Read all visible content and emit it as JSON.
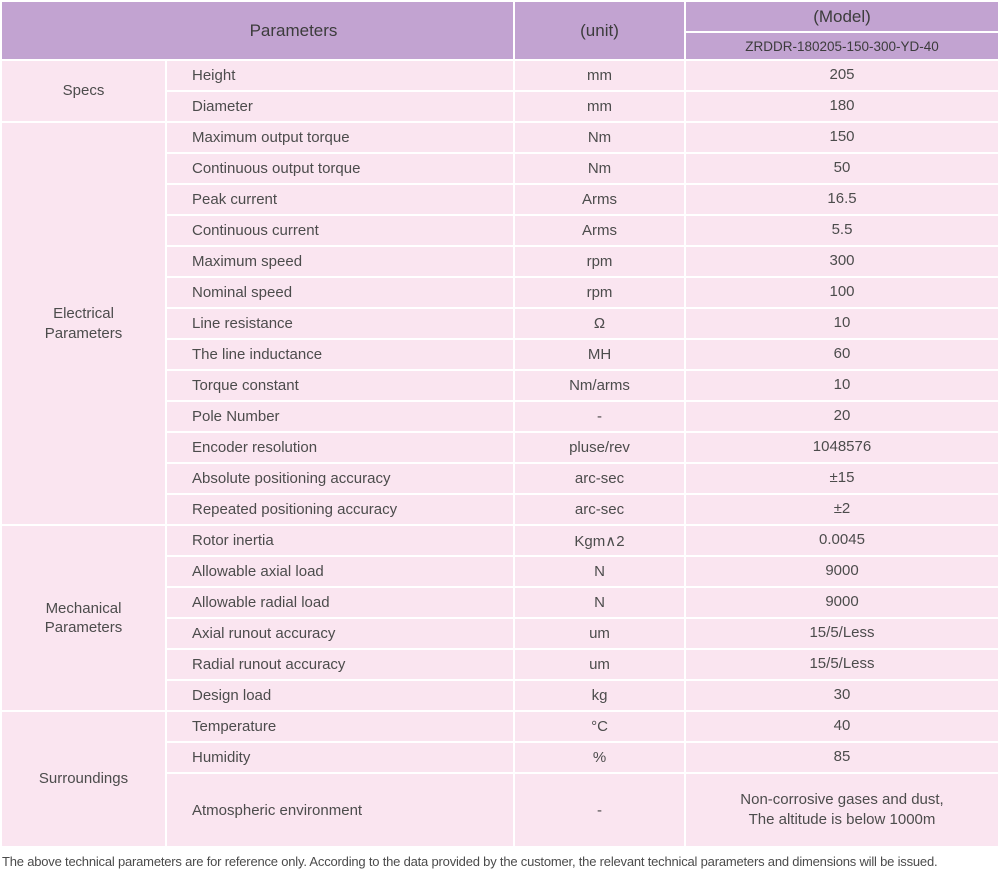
{
  "colors": {
    "header_bg": "#c2a3d1",
    "row_bg": "#fae5f0",
    "border": "#ffffff",
    "header_text": "#3c3c3c",
    "body_text": "#4c4c4c",
    "note_text": "#4b4b4b"
  },
  "table": {
    "header": {
      "parameters_label": "Parameters",
      "unit_label": "(unit)",
      "model_label": "(Model)",
      "model_value": "ZRDDR-180205-150-300-YD-40"
    },
    "sections": [
      {
        "name": "Specs",
        "rows": [
          {
            "parameter": "Height",
            "unit": "mm",
            "value": "205"
          },
          {
            "parameter": "Diameter",
            "unit": "mm",
            "value": "180"
          }
        ]
      },
      {
        "name": "Electrical\nParameters",
        "rows": [
          {
            "parameter": "Maximum output torque",
            "unit": "Nm",
            "value": "150"
          },
          {
            "parameter": "Continuous output torque",
            "unit": "Nm",
            "value": "50"
          },
          {
            "parameter": "Peak current",
            "unit": "Arms",
            "value": "16.5"
          },
          {
            "parameter": "Continuous current",
            "unit": "Arms",
            "value": "5.5"
          },
          {
            "parameter": "Maximum speed",
            "unit": "rpm",
            "value": "300"
          },
          {
            "parameter": "Nominal speed",
            "unit": "rpm",
            "value": "100"
          },
          {
            "parameter": "Line resistance",
            "unit": "Ω",
            "value": "10"
          },
          {
            "parameter": "The line inductance",
            "unit": "MH",
            "value": "60"
          },
          {
            "parameter": "Torque constant",
            "unit": "Nm/arms",
            "value": "10"
          },
          {
            "parameter": "Pole Number",
            "unit": "-",
            "value": "20"
          },
          {
            "parameter": "Encoder resolution",
            "unit": "pluse/rev",
            "value": "1048576"
          },
          {
            "parameter": "Absolute positioning accuracy",
            "unit": "arc-sec",
            "value": "±15"
          },
          {
            "parameter": "Repeated positioning accuracy",
            "unit": "arc-sec",
            "value": "±2"
          }
        ]
      },
      {
        "name": "Mechanical\nParameters",
        "rows": [
          {
            "parameter": "Rotor inertia",
            "unit": "Kgm∧2",
            "value": "0.0045"
          },
          {
            "parameter": "Allowable axial load",
            "unit": "N",
            "value": "9000"
          },
          {
            "parameter": "Allowable radial load",
            "unit": "N",
            "value": "9000"
          },
          {
            "parameter": "Axial runout accuracy",
            "unit": "um",
            "value": "15/5/Less"
          },
          {
            "parameter": "Radial runout accuracy",
            "unit": "um",
            "value": "15/5/Less"
          },
          {
            "parameter": "Design load",
            "unit": "kg",
            "value": "30"
          }
        ]
      },
      {
        "name": "Surroundings",
        "rows": [
          {
            "parameter": "Temperature",
            "unit": "°C",
            "value": "40"
          },
          {
            "parameter": "Humidity",
            "unit": "%",
            "value": "85"
          },
          {
            "parameter": "Atmospheric environment",
            "unit": "-",
            "value": "Non-corrosive gases and dust,\nThe altitude is below 1000m"
          }
        ]
      }
    ]
  },
  "footer": {
    "note": "The above technical parameters are for reference only. According to the data provided by the customer, the relevant technical parameters and dimensions will be issued."
  }
}
